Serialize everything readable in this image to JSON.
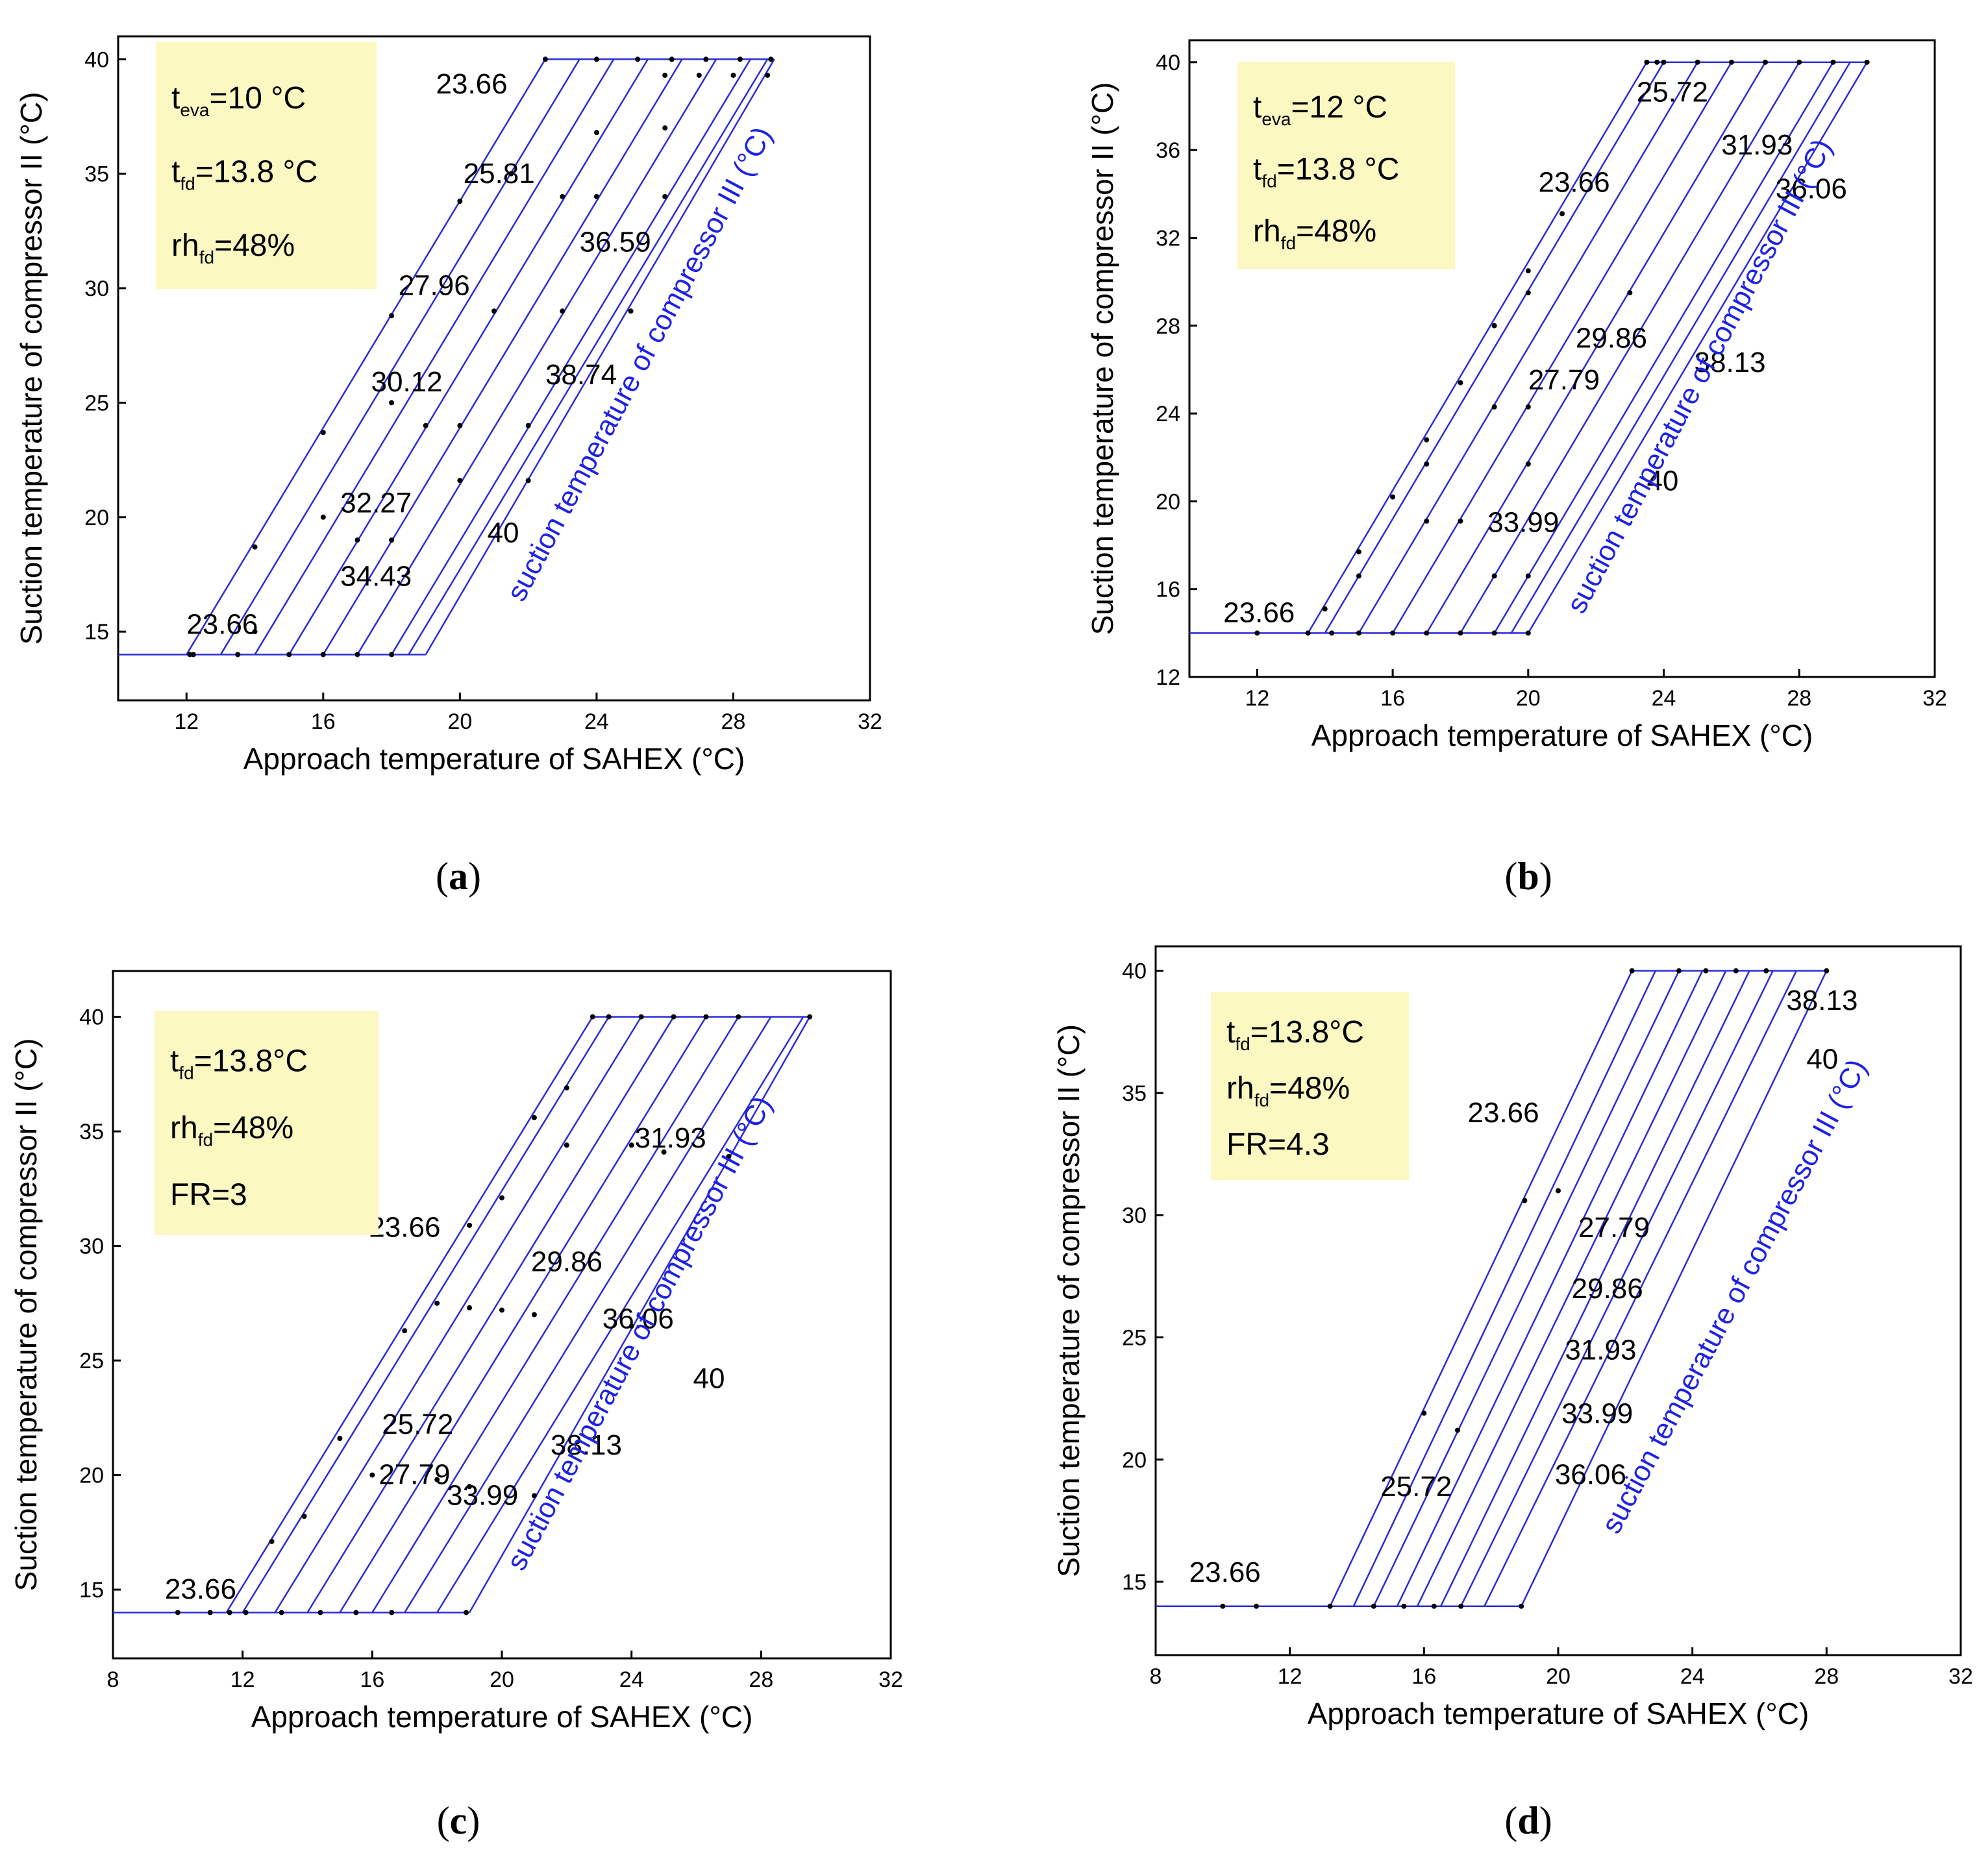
{
  "x_axis_label": "Approach temperature of SAHEX (°C)",
  "y_axis_label": "Suction temperature of compressor II (°C)",
  "diagonal_label": "suction temperature of compressor III (°C)",
  "colors": {
    "line": "#2b2bd9",
    "diag_label": "#1e22e6",
    "box": "#fbf8c2",
    "axis": "#000000",
    "dot": "#000000"
  },
  "chart_data": [
    {
      "id": "a",
      "type": "line",
      "caption": "(a)",
      "xlabel": "Approach temperature of SAHEX (°C)",
      "ylabel": "Suction temperature of compressor II (°C)",
      "xlim": [
        10,
        32
      ],
      "ylim": [
        12,
        41
      ],
      "xticks": [
        12,
        16,
        20,
        24,
        28,
        32
      ],
      "yticks": [
        15,
        20,
        25,
        30,
        35,
        40
      ],
      "conditions": [
        {
          "name": "t",
          "sub": "eva",
          "rest": "=10 °C"
        },
        {
          "name": "t",
          "sub": "fd",
          "rest": "=13.8 °C"
        },
        {
          "name": "rh",
          "sub": "fd",
          "rest": "=48%"
        }
      ],
      "series": [
        {
          "name": "23.66",
          "x_low": 12.0,
          "x_top": 22.5
        },
        {
          "name": "25.81",
          "x_low": 13.0,
          "x_top": 23.5
        },
        {
          "name": "27.96",
          "x_low": 14.0,
          "x_top": 24.5
        },
        {
          "name": "30.12",
          "x_low": 15.0,
          "x_top": 25.5
        },
        {
          "name": "32.27",
          "x_low": 16.0,
          "x_top": 26.5
        },
        {
          "name": "34.43",
          "x_low": 17.0,
          "x_top": 27.5
        },
        {
          "name": "36.59",
          "x_low": 18.0,
          "x_top": 28.5
        },
        {
          "name": "38.74",
          "x_low": 18.5,
          "x_top": 29.0
        },
        {
          "name": "40",
          "x_low": 19.0,
          "x_top": 29.2
        }
      ],
      "y_bottom": 14,
      "y_top": 40,
      "points": [
        [
          12.1,
          14
        ],
        [
          13.5,
          14
        ],
        [
          15,
          14
        ],
        [
          16,
          14
        ],
        [
          17,
          14
        ],
        [
          18,
          14
        ],
        [
          12.2,
          14
        ],
        [
          14,
          18.7
        ],
        [
          16,
          23.7
        ],
        [
          18,
          28.8
        ],
        [
          20,
          33.8
        ],
        [
          22.5,
          40
        ],
        [
          14,
          15
        ],
        [
          16,
          20
        ],
        [
          17,
          19
        ],
        [
          18,
          25
        ],
        [
          18,
          19
        ],
        [
          19,
          24
        ],
        [
          20,
          21.6
        ],
        [
          20,
          24
        ],
        [
          21,
          29
        ],
        [
          21.5,
          35
        ],
        [
          22,
          24
        ],
        [
          22,
          21.6
        ],
        [
          23,
          29
        ],
        [
          23,
          34
        ],
        [
          24,
          34
        ],
        [
          24,
          36.8
        ],
        [
          25,
          29
        ],
        [
          26,
          34
        ],
        [
          26,
          37
        ],
        [
          24,
          40
        ],
        [
          25.2,
          40
        ],
        [
          26.2,
          40
        ],
        [
          27.2,
          40
        ],
        [
          28.2,
          40
        ],
        [
          29.1,
          40
        ],
        [
          26,
          39.3
        ],
        [
          27,
          39.3
        ],
        [
          28,
          39.3
        ],
        [
          29,
          39.3
        ]
      ],
      "annotations": [
        {
          "text": "23.66",
          "x": 12.0,
          "y": 14.9
        },
        {
          "text": "23.66",
          "x": 19.3,
          "y": 38.5
        },
        {
          "text": "25.81",
          "x": 20.1,
          "y": 34.6
        },
        {
          "text": "27.96",
          "x": 18.2,
          "y": 29.7
        },
        {
          "text": "30.12",
          "x": 17.4,
          "y": 25.5
        },
        {
          "text": "32.27",
          "x": 16.5,
          "y": 20.2
        },
        {
          "text": "34.43",
          "x": 16.5,
          "y": 17.0
        },
        {
          "text": "36.59",
          "x": 23.5,
          "y": 31.6
        },
        {
          "text": "38.74",
          "x": 22.5,
          "y": 25.8
        },
        {
          "text": "40",
          "x": 20.8,
          "y": 18.9
        }
      ],
      "diag_label_pos": [
        25.5,
        26.5
      ]
    },
    {
      "id": "b",
      "type": "line",
      "caption": "(b)",
      "xlabel": "Approach temperature of SAHEX (°C)",
      "ylabel": "Suction temperature of compressor II (°C)",
      "xlim": [
        10,
        32
      ],
      "ylim": [
        12,
        41
      ],
      "xticks": [
        12,
        16,
        20,
        24,
        28,
        32
      ],
      "yticks": [
        12,
        16,
        20,
        24,
        28,
        32,
        36,
        40
      ],
      "conditions": [
        {
          "name": "t",
          "sub": "eva",
          "rest": "=12 °C"
        },
        {
          "name": "t",
          "sub": "fd",
          "rest": "=13.8 °C"
        },
        {
          "name": "rh",
          "sub": "fd",
          "rest": "=48%"
        }
      ],
      "series": [
        {
          "name": "23.66",
          "x_low": 13.5,
          "x_top": 23.5
        },
        {
          "name": "25.72",
          "x_low": 14.0,
          "x_top": 24.0
        },
        {
          "name": "27.79",
          "x_low": 15.0,
          "x_top": 25.0
        },
        {
          "name": "29.86",
          "x_low": 16.0,
          "x_top": 26.0
        },
        {
          "name": "31.93",
          "x_low": 17.0,
          "x_top": 27.0
        },
        {
          "name": "33.99",
          "x_low": 18.0,
          "x_top": 28.0
        },
        {
          "name": "36.06",
          "x_low": 19.0,
          "x_top": 29.0
        },
        {
          "name": "38.13",
          "x_low": 19.5,
          "x_top": 29.5
        },
        {
          "name": "40",
          "x_low": 20.0,
          "x_top": 30.0
        }
      ],
      "y_bottom": 14,
      "y_top": 40,
      "points": [
        [
          12,
          14
        ],
        [
          13.5,
          14
        ],
        [
          14.2,
          14
        ],
        [
          15,
          14
        ],
        [
          16,
          14
        ],
        [
          17,
          14
        ],
        [
          18,
          14
        ],
        [
          19,
          14
        ],
        [
          20,
          14
        ],
        [
          14,
          15.1
        ],
        [
          15,
          17.7
        ],
        [
          15,
          16.6
        ],
        [
          16,
          20.2
        ],
        [
          17,
          21.7
        ],
        [
          17,
          22.8
        ],
        [
          18,
          25.4
        ],
        [
          19,
          28
        ],
        [
          20,
          30.5
        ],
        [
          21,
          33.1
        ],
        [
          20,
          29.5
        ],
        [
          17,
          19.1
        ],
        [
          18,
          19.1
        ],
        [
          19,
          24.3
        ],
        [
          19,
          16.6
        ],
        [
          20,
          16.6
        ],
        [
          20,
          21.7
        ],
        [
          20,
          24.3
        ],
        [
          23,
          29.5
        ],
        [
          23.5,
          40
        ],
        [
          23.8,
          40
        ],
        [
          24,
          40
        ],
        [
          25,
          40
        ],
        [
          26,
          40
        ],
        [
          27,
          40
        ],
        [
          28,
          40
        ],
        [
          29,
          40
        ],
        [
          30,
          40
        ]
      ],
      "annotations": [
        {
          "text": "23.66",
          "x": 11.0,
          "y": 14.5
        },
        {
          "text": "23.66",
          "x": 20.3,
          "y": 34.1
        },
        {
          "text": "25.72",
          "x": 23.2,
          "y": 38.2
        },
        {
          "text": "31.93",
          "x": 25.7,
          "y": 35.8
        },
        {
          "text": "36.06",
          "x": 27.3,
          "y": 33.8
        },
        {
          "text": "29.86",
          "x": 21.4,
          "y": 27.0
        },
        {
          "text": "38.13",
          "x": 24.9,
          "y": 25.9
        },
        {
          "text": "27.79",
          "x": 20.0,
          "y": 25.1
        },
        {
          "text": "40",
          "x": 23.5,
          "y": 20.5
        },
        {
          "text": "33.99",
          "x": 18.8,
          "y": 18.6
        }
      ],
      "diag_label_pos": [
        25.3,
        25.5
      ]
    },
    {
      "id": "c",
      "type": "line",
      "caption": "(c)",
      "xlabel": "Approach temperature of SAHEX (°C)",
      "ylabel": "Suction temperature of compressor II (°C)",
      "xlim": [
        8,
        32
      ],
      "ylim": [
        12,
        42
      ],
      "xticks": [
        8,
        12,
        16,
        20,
        24,
        28,
        32
      ],
      "yticks": [
        15,
        20,
        25,
        30,
        35,
        40
      ],
      "conditions": [
        {
          "name": "t",
          "sub": "fd",
          "rest": "=13.8°C"
        },
        {
          "name": "rh",
          "sub": "fd",
          "rest": "=48%"
        },
        {
          "name": "FR=3",
          "sub": "",
          "rest": ""
        }
      ],
      "series": [
        {
          "name": "23.66",
          "x_low": 11.5,
          "x_top": 22.8
        },
        {
          "name": "25.72",
          "x_low": 12.0,
          "x_top": 23.3
        },
        {
          "name": "27.79",
          "x_low": 13.0,
          "x_top": 24.3
        },
        {
          "name": "29.86",
          "x_low": 14.0,
          "x_top": 25.3
        },
        {
          "name": "31.93",
          "x_low": 15.0,
          "x_top": 26.3
        },
        {
          "name": "33.99",
          "x_low": 16.0,
          "x_top": 27.3
        },
        {
          "name": "36.06",
          "x_low": 17.0,
          "x_top": 28.3
        },
        {
          "name": "38.13",
          "x_low": 18.0,
          "x_top": 29.3
        },
        {
          "name": "40",
          "x_low": 19.0,
          "x_top": 29.5
        }
      ],
      "y_bottom": 14,
      "y_top": 40,
      "points": [
        [
          10,
          14
        ],
        [
          11,
          14
        ],
        [
          11.6,
          14
        ],
        [
          12.1,
          14
        ],
        [
          13.2,
          14
        ],
        [
          14.4,
          14
        ],
        [
          15.5,
          14
        ],
        [
          16.6,
          14
        ],
        [
          18.9,
          14
        ],
        [
          12.9,
          17.1
        ],
        [
          13.9,
          18.2
        ],
        [
          15,
          21.6
        ],
        [
          16,
          20
        ],
        [
          17,
          26.3
        ],
        [
          18,
          27.5
        ],
        [
          18,
          19.8
        ],
        [
          19,
          30.9
        ],
        [
          19,
          19.5
        ],
        [
          19,
          27.3
        ],
        [
          20,
          32.1
        ],
        [
          20,
          27.2
        ],
        [
          21,
          35.6
        ],
        [
          21,
          19.1
        ],
        [
          21,
          27
        ],
        [
          22,
          36.9
        ],
        [
          22,
          34.4
        ],
        [
          24,
          34.4
        ],
        [
          24,
          26.5
        ],
        [
          25,
          34.1
        ],
        [
          27,
          33.9
        ],
        [
          22.8,
          40
        ],
        [
          23.3,
          40
        ],
        [
          24.3,
          40
        ],
        [
          25.3,
          40
        ],
        [
          26.3,
          40
        ],
        [
          27.3,
          40
        ],
        [
          29.5,
          40
        ]
      ],
      "annotations": [
        {
          "text": "23.66",
          "x": 9.6,
          "y": 14.6
        },
        {
          "text": "23.66",
          "x": 15.9,
          "y": 30.4
        },
        {
          "text": "29.86",
          "x": 20.9,
          "y": 28.9
        },
        {
          "text": "31.93",
          "x": 24.1,
          "y": 34.3
        },
        {
          "text": "40",
          "x": 25.9,
          "y": 23.8
        },
        {
          "text": "36.06",
          "x": 23.1,
          "y": 26.4
        },
        {
          "text": "25.72",
          "x": 16.3,
          "y": 21.8
        },
        {
          "text": "27.79",
          "x": 16.2,
          "y": 19.6
        },
        {
          "text": "33.99",
          "x": 18.3,
          "y": 18.7
        },
        {
          "text": "38.13",
          "x": 21.5,
          "y": 20.9
        }
      ],
      "diag_label_pos": [
        24.5,
        26.0
      ]
    },
    {
      "id": "d",
      "type": "line",
      "caption": "(d)",
      "xlabel": "Approach temperature of SAHEX (°C)",
      "ylabel": "Suction temperature of compressor II (°C)",
      "xlim": [
        8,
        32
      ],
      "ylim": [
        12,
        41
      ],
      "xticks": [
        8,
        12,
        16,
        20,
        24,
        28,
        32
      ],
      "yticks": [
        15,
        20,
        25,
        30,
        35,
        40
      ],
      "conditions": [
        {
          "name": "t",
          "sub": "fd",
          "rest": "=13.8°C"
        },
        {
          "name": "rh",
          "sub": "fd",
          "rest": "=48%"
        },
        {
          "name": "FR=4.3",
          "sub": "",
          "rest": ""
        }
      ],
      "series": [
        {
          "name": "23.66",
          "x_low": 13.2,
          "x_top": 22.2
        },
        {
          "name": "25.72",
          "x_low": 13.9,
          "x_top": 22.9
        },
        {
          "name": "27.79",
          "x_low": 14.5,
          "x_top": 23.6
        },
        {
          "name": "29.86",
          "x_low": 15.2,
          "x_top": 24.3
        },
        {
          "name": "31.93",
          "x_low": 15.8,
          "x_top": 25.0
        },
        {
          "name": "33.99",
          "x_low": 16.5,
          "x_top": 25.7
        },
        {
          "name": "36.06",
          "x_low": 17.1,
          "x_top": 26.4
        },
        {
          "name": "38.13",
          "x_low": 17.8,
          "x_top": 27.1
        },
        {
          "name": "40",
          "x_low": 18.9,
          "x_top": 28.0
        }
      ],
      "y_bottom": 14,
      "y_top": 40,
      "points": [
        [
          10,
          14
        ],
        [
          11,
          14
        ],
        [
          13.2,
          14
        ],
        [
          14.5,
          14
        ],
        [
          15.4,
          14
        ],
        [
          16.3,
          14
        ],
        [
          17.1,
          14
        ],
        [
          18.9,
          14
        ],
        [
          16,
          21.9
        ],
        [
          17,
          21.2
        ],
        [
          19,
          30.6
        ],
        [
          20,
          31
        ],
        [
          22.2,
          40
        ],
        [
          23.6,
          40
        ],
        [
          24.4,
          40
        ],
        [
          25.3,
          40
        ],
        [
          26.2,
          40
        ],
        [
          28,
          40
        ]
      ],
      "annotations": [
        {
          "text": "23.66",
          "x": 9.0,
          "y": 15.0
        },
        {
          "text": "23.66",
          "x": 17.3,
          "y": 33.8
        },
        {
          "text": "25.72",
          "x": 14.7,
          "y": 18.5
        },
        {
          "text": "27.79",
          "x": 20.6,
          "y": 29.1
        },
        {
          "text": "29.86",
          "x": 20.4,
          "y": 26.6
        },
        {
          "text": "31.93",
          "x": 20.2,
          "y": 24.1
        },
        {
          "text": "33.99",
          "x": 20.1,
          "y": 21.5
        },
        {
          "text": "36.06",
          "x": 19.9,
          "y": 19.0
        },
        {
          "text": "38.13",
          "x": 26.8,
          "y": 38.4
        },
        {
          "text": "40",
          "x": 27.4,
          "y": 36.0
        }
      ],
      "diag_label_pos": [
        25.5,
        26.5
      ]
    }
  ]
}
